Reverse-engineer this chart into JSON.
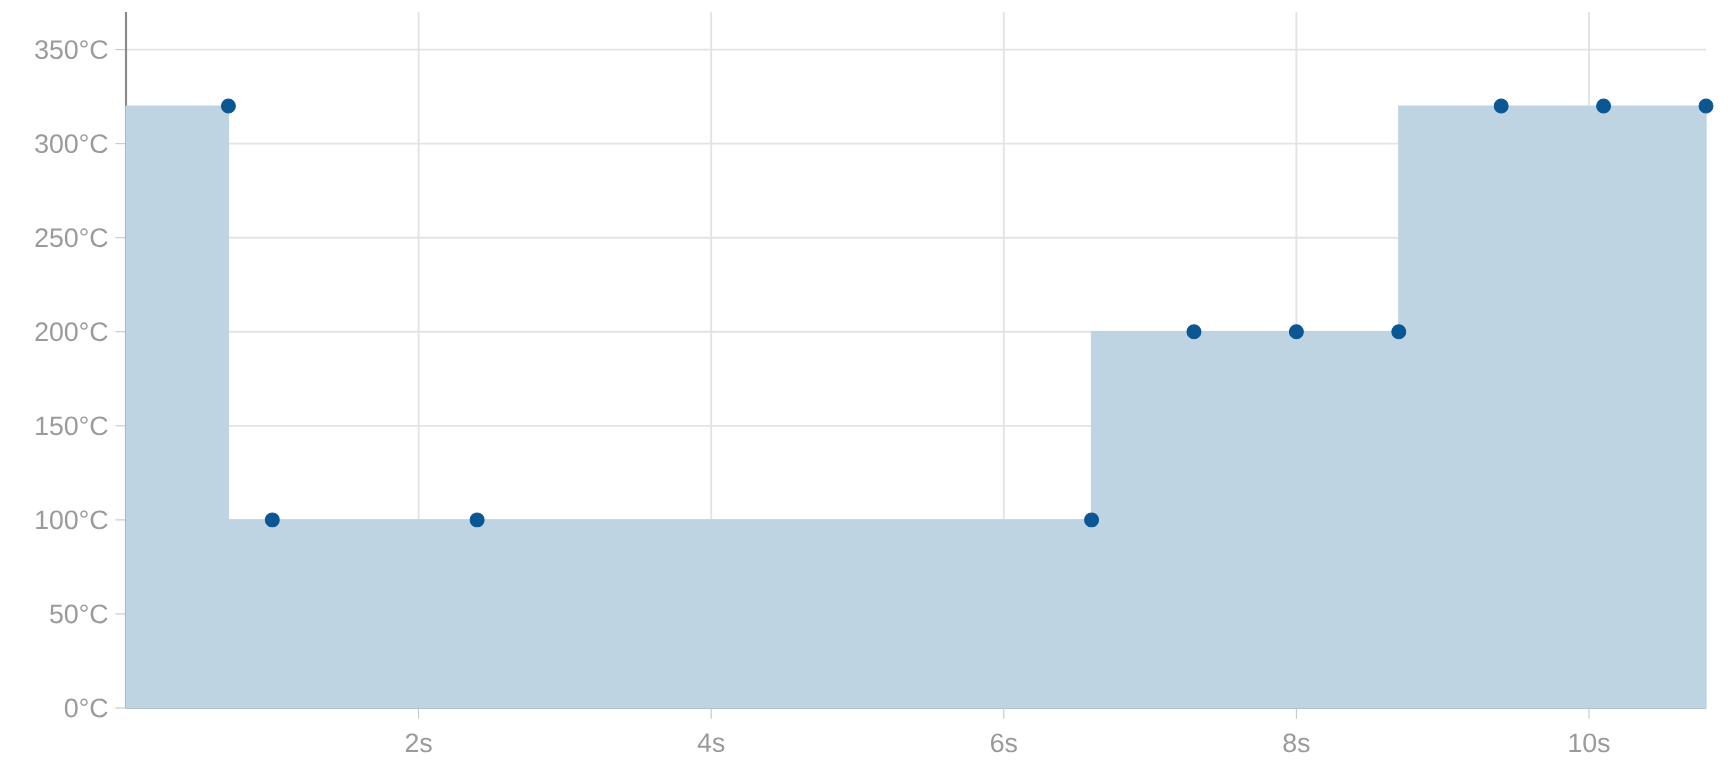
{
  "chart_data": {
    "type": "area",
    "x": [
      0.7,
      1.0,
      2.4,
      6.6,
      7.3,
      8.0,
      8.7,
      9.4,
      10.1,
      10.8
    ],
    "series": [
      {
        "x": [
          0,
          0.7,
          0.7,
          6.6,
          6.6,
          8.7,
          8.7,
          10.8
        ],
        "color": "#bfd4e2",
        "marker": "none",
        "values": [
          320,
          320,
          100,
          100,
          200,
          200,
          320,
          320
        ]
      },
      {
        "type": "scatter",
        "color": "#0b5794",
        "marker": "circle",
        "values": [
          320,
          100,
          100,
          100,
          200,
          200,
          200,
          320,
          320,
          320
        ]
      }
    ],
    "xlim": [
      0,
      10.8
    ],
    "ylim": [
      0,
      370
    ],
    "xticks": [
      {
        "value": 2,
        "label": "2s"
      },
      {
        "value": 4,
        "label": "4s"
      },
      {
        "value": 6,
        "label": "6s"
      },
      {
        "value": 8,
        "label": "8s"
      },
      {
        "value": 10,
        "label": "10s"
      }
    ],
    "yticks": [
      {
        "value": 0,
        "label": "0°C"
      },
      {
        "value": 50,
        "label": "50°C"
      },
      {
        "value": 100,
        "label": "100°C"
      },
      {
        "value": 150,
        "label": "150°C"
      },
      {
        "value": 200,
        "label": "200°C"
      },
      {
        "value": 250,
        "label": "250°C"
      },
      {
        "value": 300,
        "label": "300°C"
      },
      {
        "value": 350,
        "label": "350°C"
      }
    ],
    "grid": true
  }
}
